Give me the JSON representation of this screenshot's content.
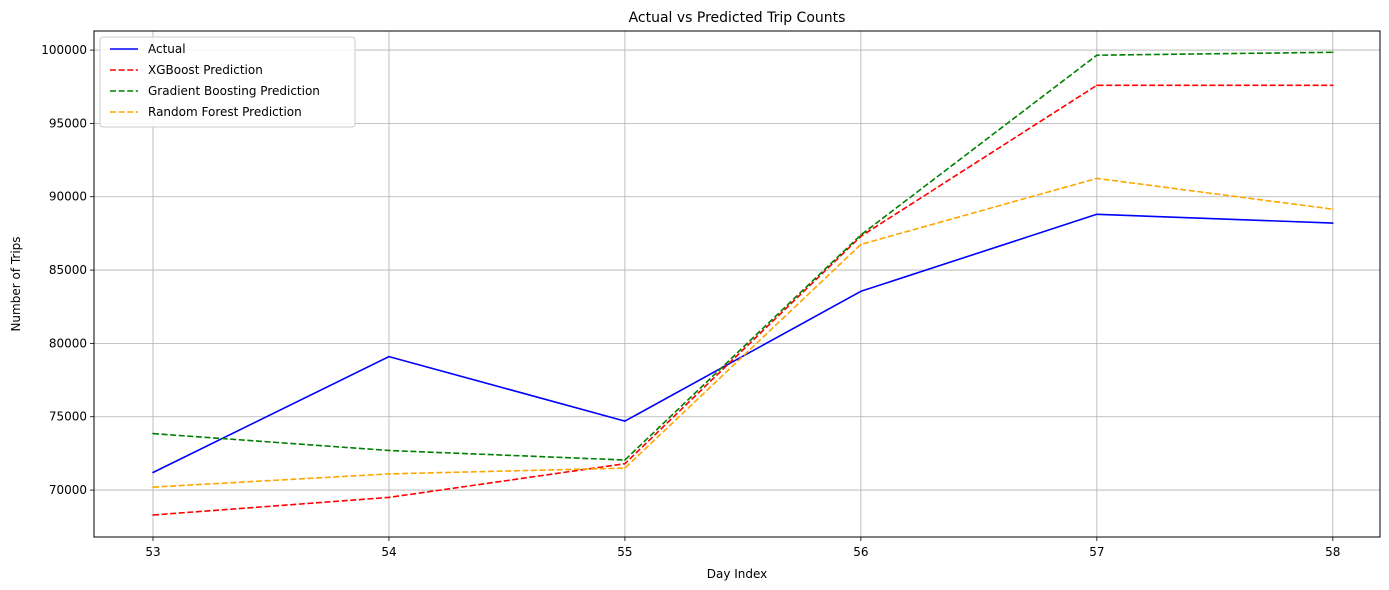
{
  "chart_data": {
    "type": "line",
    "title": "Actual vs Predicted Trip Counts",
    "xlabel": "Day Index",
    "ylabel": "Number of Trips",
    "x": [
      53,
      54,
      55,
      56,
      57,
      58
    ],
    "xlim": [
      52.75,
      58.2
    ],
    "ylim": [
      66800,
      101300
    ],
    "yticks": [
      70000,
      75000,
      80000,
      85000,
      90000,
      95000,
      100000
    ],
    "grid": true,
    "legend_position": "top-left",
    "series": [
      {
        "name": "Actual",
        "color": "#0000ff",
        "style": "solid",
        "values": [
          71200,
          79100,
          74700,
          83550,
          88800,
          88200
        ]
      },
      {
        "name": "XGBoost Prediction",
        "color": "#ff0000",
        "style": "dashed",
        "values": [
          68300,
          69500,
          71800,
          87300,
          97600,
          97600
        ]
      },
      {
        "name": "Gradient Boosting Prediction",
        "color": "#008000",
        "style": "dashed",
        "values": [
          73850,
          72700,
          72050,
          87400,
          99650,
          99850
        ]
      },
      {
        "name": "Random Forest Prediction",
        "color": "#ffa500",
        "style": "dashed",
        "values": [
          70200,
          71100,
          71500,
          86750,
          91250,
          89150
        ]
      }
    ]
  }
}
